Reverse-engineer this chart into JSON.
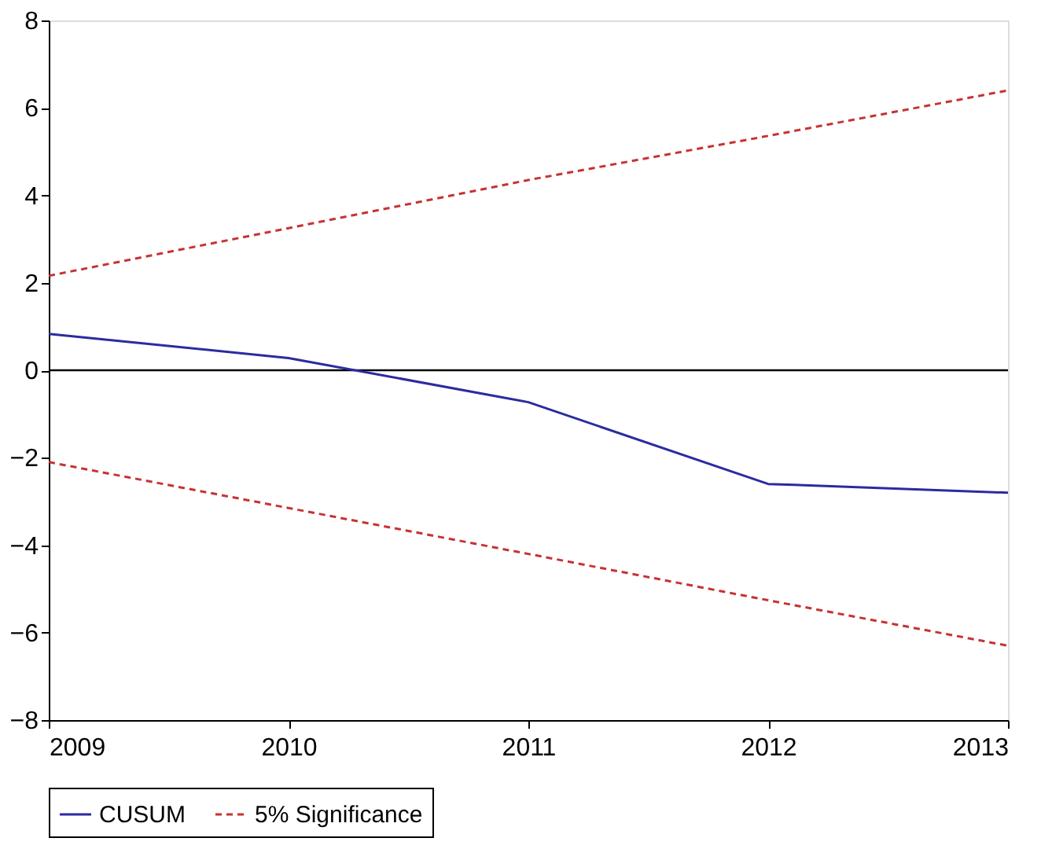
{
  "chart_data": {
    "type": "line",
    "x": [
      2009,
      2010,
      2011,
      2012,
      2013
    ],
    "series": [
      {
        "name": "CUSUM",
        "color": "#2b2ba0",
        "line_style": "solid",
        "values": [
          0.83,
          0.28,
          -0.73,
          -2.6,
          -2.8
        ]
      },
      {
        "name": "5% Significance",
        "color": "#c83232",
        "line_style": "dashed",
        "values": [
          2.16,
          3.25,
          4.35,
          5.36,
          6.4
        ]
      },
      {
        "color": "#c83232",
        "line_style": "dashed",
        "values": [
          -2.1,
          -3.15,
          -4.2,
          -5.26,
          -6.3
        ]
      }
    ],
    "xlim": [
      2009,
      2013
    ],
    "xticks": [
      2009,
      2010,
      2011,
      2012,
      2013
    ],
    "ylim": [
      -8,
      8
    ],
    "yticks": [
      -8,
      -6,
      -4,
      -2,
      0,
      2,
      4,
      6,
      8
    ],
    "ref_lines": [
      {
        "axis": "y",
        "value": 0,
        "color": "#000000"
      }
    ],
    "grid": false,
    "legend": "bottom"
  }
}
